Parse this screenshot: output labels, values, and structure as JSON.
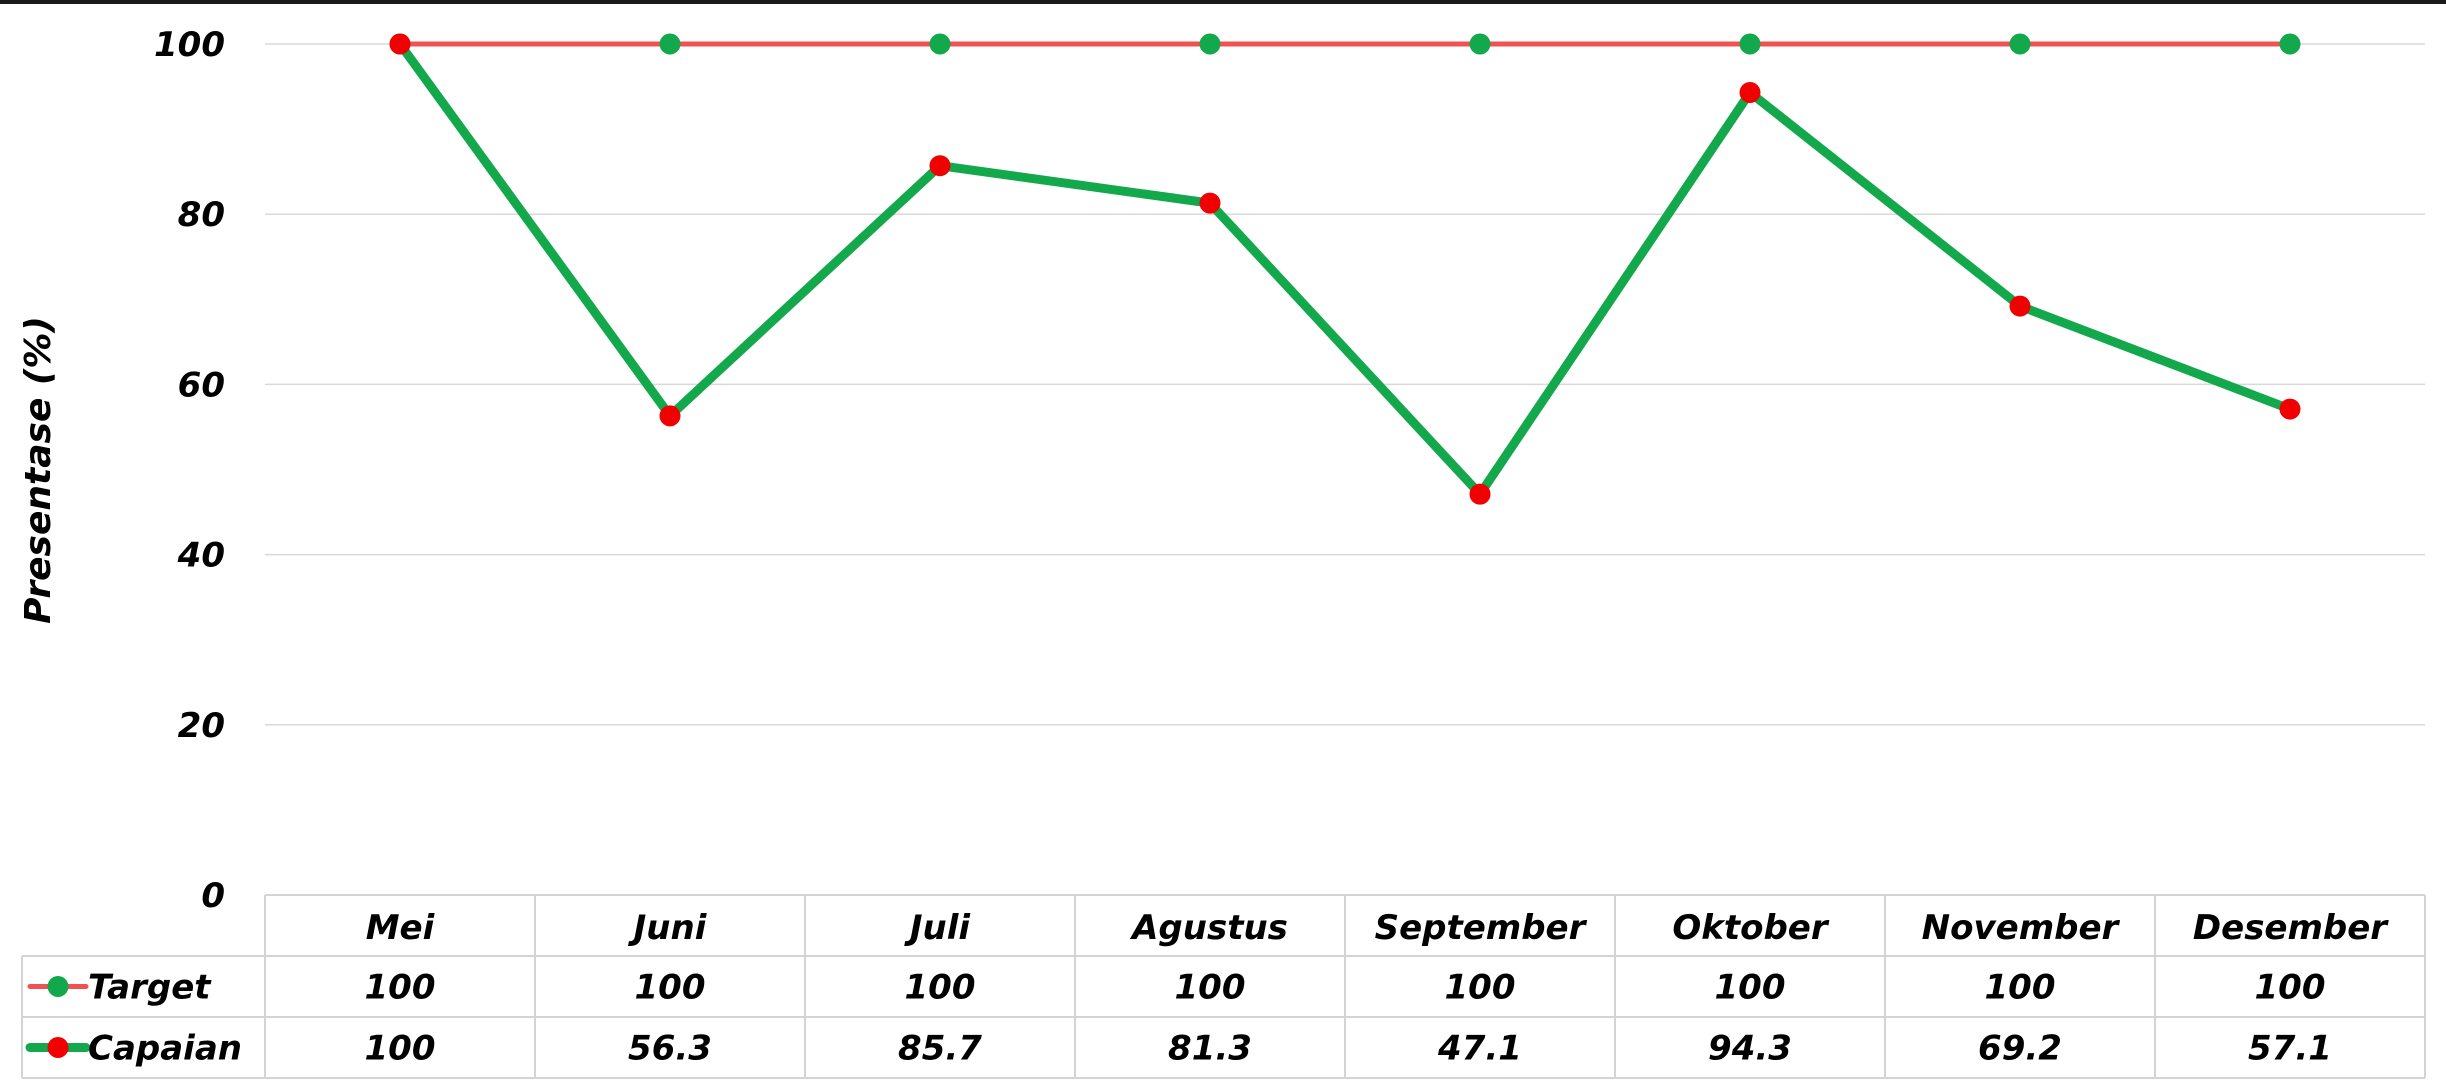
{
  "chart_data": {
    "type": "line",
    "categories": [
      "Mei",
      "Juni",
      "Juli",
      "Agustus",
      "September",
      "Oktober",
      "November",
      "Desember"
    ],
    "series": [
      {
        "name": "Target",
        "values": [
          100,
          100,
          100,
          100,
          100,
          100,
          100,
          100
        ],
        "line_color": "#f05252",
        "marker_color": "#12a84b"
      },
      {
        "name": "Capaian",
        "values": [
          100,
          56.3,
          85.7,
          81.3,
          47.1,
          94.3,
          69.2,
          57.1
        ],
        "line_color": "#12a84b",
        "marker_color": "#f00000"
      }
    ],
    "table_values": [
      [
        "100",
        "100",
        "100",
        "100",
        "100",
        "100",
        "100",
        "100"
      ],
      [
        "100",
        "56.3",
        "85.7",
        "81.3",
        "47.1",
        "94.3",
        "69.2",
        "57.1"
      ]
    ],
    "ylabel": "Presentase (%)",
    "ylim": [
      0,
      100
    ],
    "yticks": [
      "0",
      "20",
      "40",
      "60",
      "80",
      "100"
    ],
    "grid": true,
    "legend": "data-table"
  }
}
